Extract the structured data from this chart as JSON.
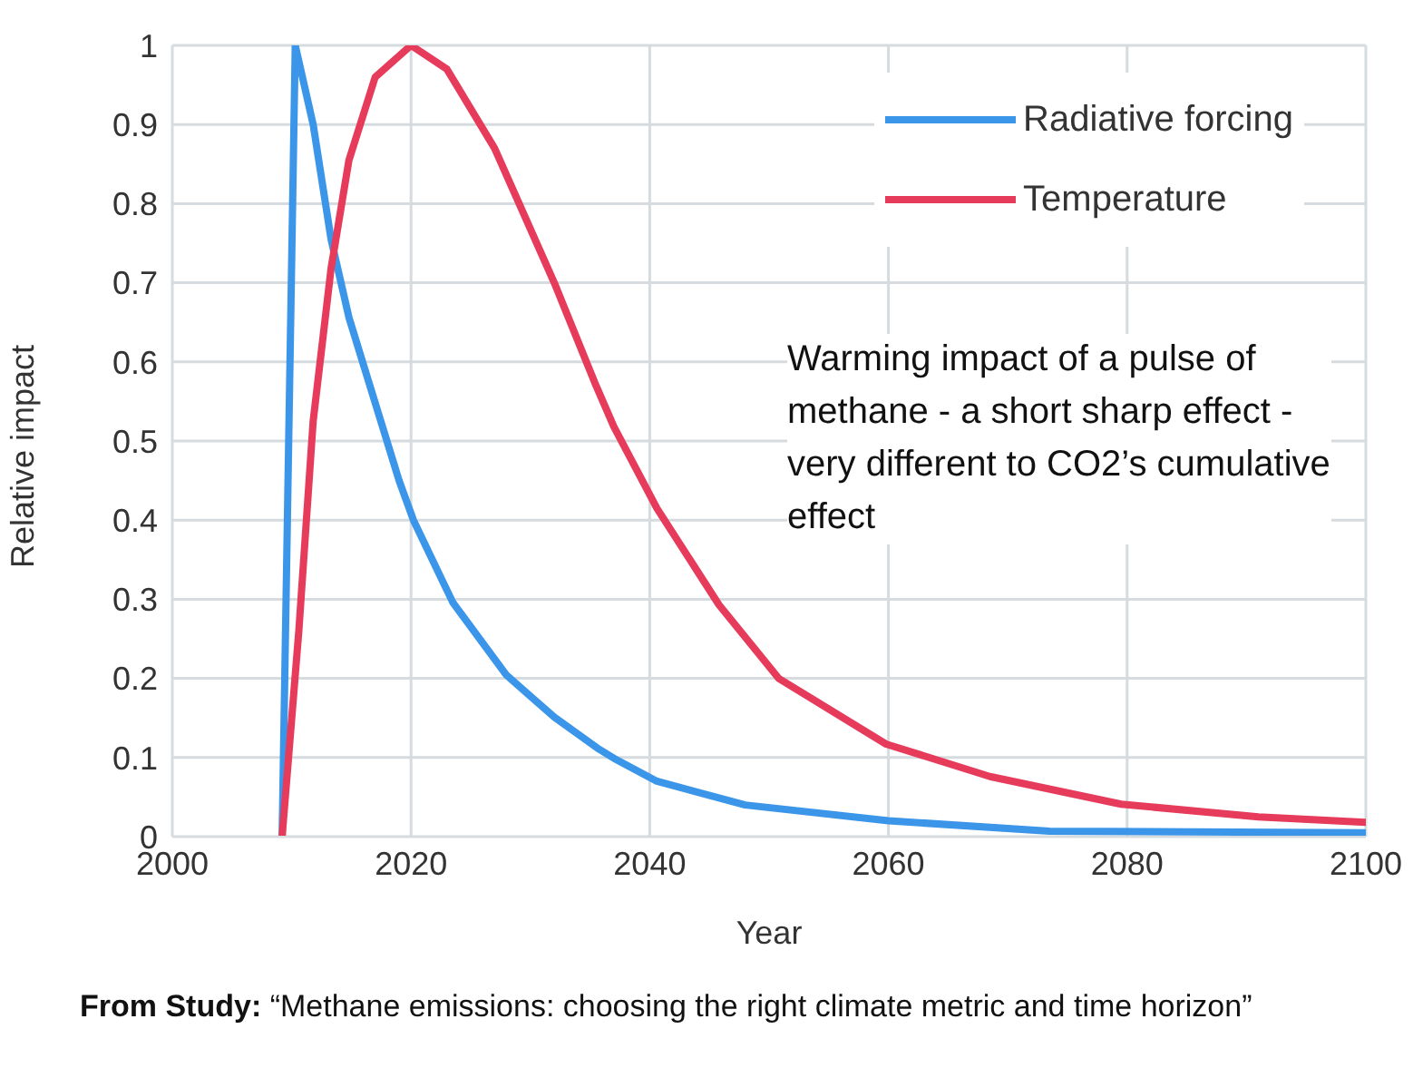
{
  "chart_data": {
    "type": "line",
    "xlabel": "Year",
    "ylabel": "Relative impact",
    "xlim": [
      2000,
      2100
    ],
    "xticks": [
      2000,
      2020,
      2040,
      2060,
      2080,
      2100
    ],
    "ylim": [
      0,
      1
    ],
    "yticks": [
      0,
      0.1,
      0.2,
      0.3,
      0.4,
      0.5,
      0.6,
      0.7,
      0.8,
      0.9,
      1
    ],
    "grid": true,
    "legend": "top right",
    "marker": "none",
    "line_style": "solid",
    "series": [
      {
        "name": "Radiative forcing",
        "color": "#3b96ea",
        "x": [
          2009.2,
          2010.3,
          2011.8,
          2013.3,
          2014.8,
          2017,
          2019,
          2020.2,
          2023.5,
          2028,
          2032,
          2035.6,
          2037,
          2040.6,
          2048,
          2060,
          2073.5,
          2100
        ],
        "values": [
          0,
          1,
          0.9,
          0.755,
          0.656,
          0.548,
          0.45,
          0.4,
          0.296,
          0.204,
          0.151,
          0.112,
          0.099,
          0.07,
          0.04,
          0.02,
          0.007,
          0.005
        ]
      },
      {
        "name": "Temperature",
        "color": "#e63b5a",
        "x": [
          2009.2,
          2010.6,
          2011.8,
          2013.3,
          2014.8,
          2017,
          2020,
          2023,
          2027,
          2032,
          2035.5,
          2037,
          2040.6,
          2045.8,
          2050.8,
          2059.8,
          2068.5,
          2079.5,
          2091,
          2100
        ],
        "values": [
          0,
          0.26,
          0.525,
          0.718,
          0.855,
          0.96,
          1,
          0.97,
          0.87,
          0.7,
          0.57,
          0.518,
          0.415,
          0.293,
          0.2,
          0.117,
          0.076,
          0.041,
          0.025,
          0.018
        ]
      }
    ],
    "annotations": [
      "Warming impact of a pulse of methane - a short sharp effect - very different to CO2’s cumulative effect",
      "From Study: “Methane emissions: choosing the right climate metric and time horizon”"
    ]
  }
}
